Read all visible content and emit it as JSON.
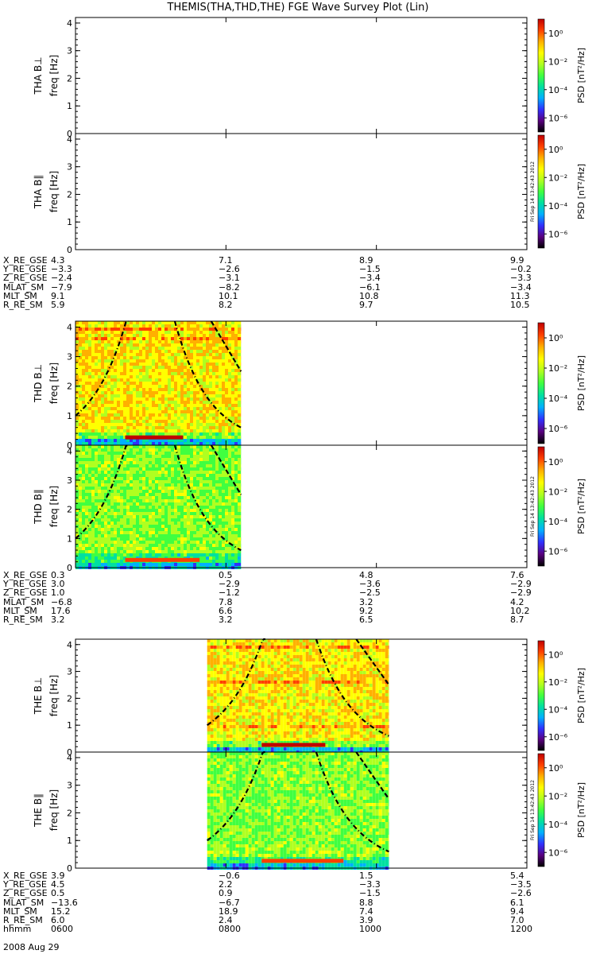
{
  "title": "THEMIS(THA,THD,THE) FGE Wave Survey Plot (Lin)",
  "footer_date": "2008 Aug 29",
  "side_stamp": "Fri Sep 14 13:42:43 2012",
  "colorbar": {
    "label": "PSD [nT²/Hz]",
    "label_plain": "PSD [nT",
    "label_unit_tail": "/Hz]",
    "tick_labels": [
      "10⁰",
      "10⁻²",
      "10⁻⁴",
      "10⁻⁶"
    ],
    "tick_exponents": [
      0,
      -2,
      -4,
      -6
    ],
    "colors": [
      "#000000",
      "#5a0080",
      "#3030ff",
      "#00b0ff",
      "#00e0a0",
      "#40ff40",
      "#b0ff20",
      "#ffff00",
      "#ffb000",
      "#ff4000",
      "#c00000"
    ]
  },
  "panels": [
    {
      "probe": "THA",
      "component": "B⊥",
      "ylabel": "THA B⊥",
      "yunit": "freq [Hz]",
      "yticks": [
        "0",
        "1",
        "2",
        "3",
        "4"
      ],
      "ylim": [
        0,
        4.2
      ],
      "data_range_hhmm": null
    },
    {
      "probe": "THA",
      "component": "B∥",
      "ylabel": "THA B∥",
      "yunit": "freq [Hz]",
      "yticks": [
        "0",
        "1",
        "2",
        "3",
        "4"
      ],
      "ylim": [
        0,
        4.2
      ],
      "data_range_hhmm": null
    },
    {
      "probe": "THD",
      "component": "B⊥",
      "ylabel": "THD B⊥",
      "yunit": "freq [Hz]",
      "yticks": [
        "0",
        "1",
        "2",
        "3",
        "4"
      ],
      "ylim": [
        0,
        4.2
      ],
      "data_range_hhmm": [
        "0600",
        "0812"
      ]
    },
    {
      "probe": "THD",
      "component": "B∥",
      "ylabel": "THD B∥",
      "yunit": "freq [Hz]",
      "yticks": [
        "0",
        "1",
        "2",
        "3",
        "4"
      ],
      "ylim": [
        0,
        4.2
      ],
      "data_range_hhmm": [
        "0600",
        "0812"
      ]
    },
    {
      "probe": "THE",
      "component": "B⊥",
      "ylabel": "THE B⊥",
      "yunit": "freq [Hz]",
      "yticks": [
        "0",
        "1",
        "2",
        "3",
        "4"
      ],
      "ylim": [
        0,
        4.2
      ],
      "data_range_hhmm": [
        "0745",
        "1010"
      ]
    },
    {
      "probe": "THE",
      "component": "B∥",
      "ylabel": "THE B∥",
      "yunit": "freq [Hz]",
      "yticks": [
        "0",
        "1",
        "2",
        "3",
        "4"
      ],
      "ylim": [
        0,
        4.2
      ],
      "data_range_hhmm": [
        "0745",
        "1010"
      ]
    }
  ],
  "ephemeris": [
    {
      "probe": "THA",
      "rows": [
        {
          "label": "X_RE_GSE",
          "values": [
            "4.3",
            "7.1",
            "8.9",
            "9.9"
          ]
        },
        {
          "label": "Y_RE_GSE",
          "values": [
            "−3.3",
            "−2.6",
            "−1.5",
            "−0.2"
          ]
        },
        {
          "label": "Z_RE_GSE",
          "values": [
            "−2.4",
            "−3.1",
            "−3.4",
            "−3.3"
          ]
        },
        {
          "label": "MLAT_SM",
          "values": [
            "−7.9",
            "−8.2",
            "−6.1",
            "−3.4"
          ]
        },
        {
          "label": "MLT_SM",
          "values": [
            "9.1",
            "10.1",
            "10.8",
            "11.3"
          ]
        },
        {
          "label": "R_RE_SM",
          "values": [
            "5.9",
            "8.2",
            "9.7",
            "10.5"
          ]
        }
      ]
    },
    {
      "probe": "THD",
      "rows": [
        {
          "label": "X_RE_GSE",
          "values": [
            "0.3",
            "0.5",
            "4.8",
            "7.6"
          ]
        },
        {
          "label": "Y_RE_GSE",
          "values": [
            "3.0",
            "−2.9",
            "−3.6",
            "−2.9"
          ]
        },
        {
          "label": "Z_RE_GSE",
          "values": [
            "1.0",
            "−1.2",
            "−2.5",
            "−2.9"
          ]
        },
        {
          "label": "MLAT_SM",
          "values": [
            "−6.8",
            "7.8",
            "3.2",
            "4.2"
          ]
        },
        {
          "label": "MLT_SM",
          "values": [
            "17.6",
            "6.6",
            "9.2",
            "10.2"
          ]
        },
        {
          "label": "R_RE_SM",
          "values": [
            "3.2",
            "3.2",
            "6.5",
            "8.7"
          ]
        }
      ]
    },
    {
      "probe": "THE",
      "rows": [
        {
          "label": "X_RE_GSE",
          "values": [
            "3.9",
            "−0.6",
            "1.5",
            "5.4"
          ]
        },
        {
          "label": "Y_RE_GSE",
          "values": [
            "4.5",
            "2.2",
            "−3.3",
            "−3.5"
          ]
        },
        {
          "label": "Z_RE_GSE",
          "values": [
            "0.5",
            "0.9",
            "−1.5",
            "−2.6"
          ]
        },
        {
          "label": "MLAT_SM",
          "values": [
            "−13.6",
            "−6.7",
            "8.8",
            "6.1"
          ]
        },
        {
          "label": "MLT_SM",
          "values": [
            "15.2",
            "18.9",
            "7.4",
            "9.4"
          ]
        },
        {
          "label": "R_RE_SM",
          "values": [
            "6.0",
            "2.4",
            "3.9",
            "7.0"
          ]
        },
        {
          "label": "hhmm",
          "values": [
            "0600",
            "0800",
            "1000",
            "1200"
          ]
        }
      ]
    }
  ],
  "chart_data": {
    "type": "heatmap",
    "title": "THEMIS(THA,THD,THE) FGE Wave Survey Plot (Lin)",
    "x_axis": {
      "label": "hhmm",
      "ticks": [
        "0600",
        "0800",
        "1000",
        "1200"
      ],
      "range_hhmm": [
        "0600",
        "1200"
      ],
      "date": "2008 Aug 29"
    },
    "y_axis": {
      "label": "freq [Hz]",
      "range": [
        0,
        4.2
      ],
      "ticks": [
        0,
        1,
        2,
        3,
        4
      ]
    },
    "z_axis": {
      "label": "PSD [nT²/Hz]",
      "scale": "log",
      "range": [
        "1e-7",
        "1e1"
      ]
    },
    "series_note_lines": [
      "dash-dot curves",
      "dashed curves"
    ],
    "grid": false
  }
}
